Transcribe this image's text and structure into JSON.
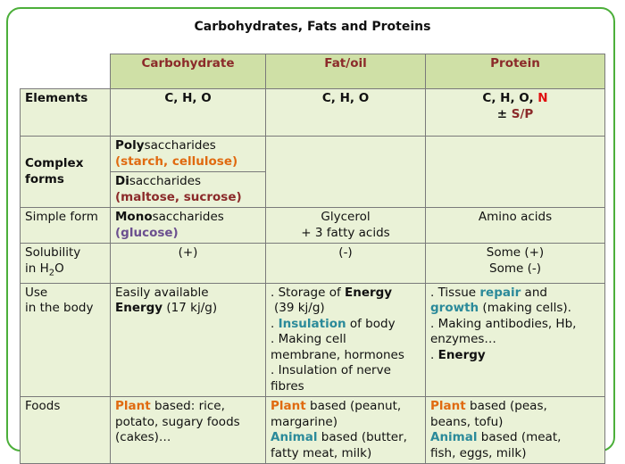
{
  "title": "Carbohydrates, Fats and Proteins",
  "headers": {
    "carb": "Carbohydrate",
    "fat": "Fat/oil",
    "protein": "Protein"
  },
  "rows": {
    "elements": {
      "label": "Elements",
      "carb": "C, H, O",
      "fat": "C, H, O",
      "protein_main": "C, H, O, ",
      "protein_n": "N",
      "protein_pm": "± ",
      "protein_sp": "S/P"
    },
    "complex": {
      "label_line1": "Complex",
      "label_line2": "forms",
      "poly_bold": "Poly",
      "poly_rest": "saccharides",
      "poly_examples": "(starch, cellulose)",
      "di_bold": "Di",
      "di_rest": "saccharides",
      "di_examples": "(maltose, sucrose)"
    },
    "simple": {
      "label": "Simple form",
      "carb_bold": "Mono",
      "carb_rest": "saccharides",
      "carb_example": "(glucose)",
      "fat_line1": "Glycerol",
      "fat_line2": "+ 3 fatty acids",
      "protein": "Amino acids"
    },
    "solubility": {
      "label_line1": "Solubility",
      "label_line2_pre": "in H",
      "label_sub": "2",
      "label_line2_post": "O",
      "carb": "(+)",
      "fat": "(-)",
      "protein_line1": "Some (+)",
      "protein_line2": "Some (-)"
    },
    "use": {
      "label_line1": "Use",
      "label_line2": "in the body",
      "carb_line1": "Easily available",
      "carb_energy": "Energy",
      "carb_value": " (17 kj/g)",
      "fat_s1_pre": ". Storage of ",
      "fat_s1_bold": "Energy",
      "fat_s1_value": "(39 kj/g)",
      "fat_s2_pre": ". ",
      "fat_s2_teal": "Insulation",
      "fat_s2_post": " of body",
      "fat_s3_line1": ". Making cell",
      "fat_s3_line2": "membrane, hormones",
      "fat_s4_line1": ". Insulation of nerve",
      "fat_s4_line2": "fibres",
      "prot_s1_pre": ". Tissue ",
      "prot_s1_repair": "repair",
      "prot_s1_and": " and",
      "prot_s1_growth": "growth",
      "prot_s1_post": " (making cells).",
      "prot_s2_line1": ". Making antibodies, Hb,",
      "prot_s2_line2": "enzymes…",
      "prot_s3_pre": ". ",
      "prot_s3_bold": "Energy"
    },
    "foods": {
      "label": "Foods",
      "carb_plant": "Plant",
      "carb_line1_rest": " based: rice,",
      "carb_line2": "potato, sugary foods",
      "carb_line3": "(cakes)…",
      "fat_plant": "Plant",
      "fat_line1_rest": " based (peanut,",
      "fat_line2": "margarine)",
      "fat_animal": "Animal",
      "fat_line3_rest": " based (butter,",
      "fat_line4": "fatty meat, milk)",
      "prot_plant": "Plant",
      "prot_line1_rest": " based (peas,",
      "prot_line2": "beans, tofu)",
      "prot_animal": "Animal",
      "prot_line3_rest": " based (meat,",
      "prot_line4": "fish, eggs, milk)"
    }
  },
  "colors": {
    "frame": "#4caf3a",
    "header_bg": "#cfe0a6",
    "cell_bg": "#eaf2d7",
    "orange": "#e06a10",
    "maroon": "#8b2a2a",
    "teal": "#2b8a9a",
    "red": "#e01010",
    "purple": "#6b4f8f"
  }
}
